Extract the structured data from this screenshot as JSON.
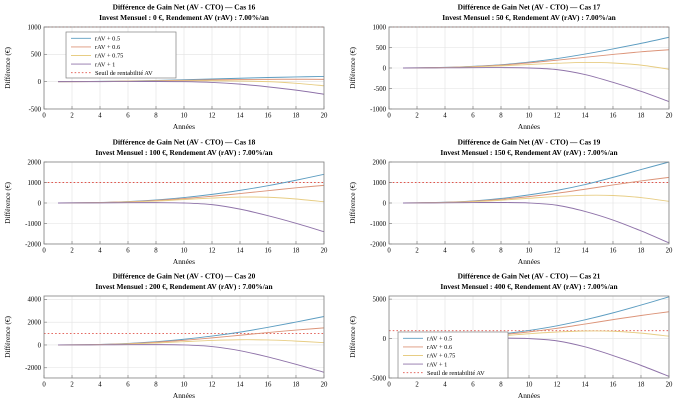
{
  "figure": {
    "xlabel": "Années",
    "ylabel": "Différence (€)",
    "xlim": [
      0,
      20
    ],
    "x_ticks": [
      0,
      2,
      4,
      6,
      8,
      10,
      12,
      14,
      16,
      18,
      20
    ],
    "x": [
      1,
      2,
      4,
      6,
      8,
      10,
      12,
      14,
      16,
      18,
      20
    ],
    "threshold_value": 1000,
    "legend_entries": [
      "rAV + 0.5",
      "rAV + 0.6",
      "rAV + 0.75",
      "rAV + 1",
      "Seuil de rentabilité AV"
    ],
    "colors": {
      "series": [
        "#5D9DC1",
        "#DC9479",
        "#E7CD84",
        "#8F73A9"
      ],
      "threshold": "#E0544B",
      "grid": "#E2E2E2",
      "axis": "#808080",
      "text": "#000000",
      "background": "#ffffff"
    }
  },
  "chart_data": [
    {
      "type": "line",
      "case": "Cas 16",
      "title": "Différence de Gain Net (AV - CTO) — Cas 16",
      "subtitle": "Invest Mensuel : 0 €, Rendement AV (rAV) : 7.00%/an",
      "ylim": [
        -500,
        1000
      ],
      "yticks": [
        -500,
        0,
        500,
        1000
      ],
      "legend": "top-left",
      "series": [
        {
          "name": "rAV + 0.5",
          "values": [
            0,
            2,
            6,
            12,
            22,
            35,
            48,
            62,
            76,
            86,
            95
          ]
        },
        {
          "name": "rAV + 0.6",
          "values": [
            0,
            1,
            4,
            9,
            16,
            25,
            32,
            38,
            42,
            44,
            42
          ]
        },
        {
          "name": "rAV + 0.75",
          "values": [
            0,
            1,
            3,
            7,
            11,
            15,
            16,
            12,
            0,
            -30,
            -75
          ]
        },
        {
          "name": "rAV + 1",
          "values": [
            0,
            0,
            1,
            2,
            3,
            0,
            -14,
            -45,
            -95,
            -155,
            -230
          ]
        }
      ]
    },
    {
      "type": "line",
      "case": "Cas 17",
      "title": "Différence de Gain Net (AV - CTO) — Cas 17",
      "subtitle": "Invest Mensuel : 50 €, Rendement AV (rAV) : 7.00%/an",
      "ylim": [
        -1000,
        1000
      ],
      "yticks": [
        -1000,
        -500,
        0,
        500,
        1000
      ],
      "legend": null,
      "series": [
        {
          "name": "rAV + 0.5",
          "values": [
            0,
            3,
            15,
            40,
            80,
            145,
            230,
            340,
            465,
            600,
            750
          ]
        },
        {
          "name": "rAV + 0.6",
          "values": [
            0,
            3,
            13,
            35,
            70,
            125,
            190,
            260,
            330,
            395,
            445
          ]
        },
        {
          "name": "rAV + 0.75",
          "values": [
            0,
            2,
            10,
            26,
            52,
            85,
            115,
            135,
            122,
            70,
            -30
          ]
        },
        {
          "name": "rAV + 1",
          "values": [
            0,
            1,
            4,
            8,
            10,
            0,
            -40,
            -160,
            -350,
            -570,
            -820
          ]
        }
      ]
    },
    {
      "type": "line",
      "case": "Cas 18",
      "title": "Différence de Gain Net (AV - CTO) — Cas 18",
      "subtitle": "Invest Mensuel : 100 €, Rendement AV (rAV) : 7.00%/an",
      "ylim": [
        -2000,
        2000
      ],
      "yticks": [
        -2000,
        -1000,
        0,
        1000,
        2000
      ],
      "legend": null,
      "series": [
        {
          "name": "rAV + 0.5",
          "values": [
            0,
            5,
            25,
            70,
            150,
            265,
            420,
            615,
            845,
            1110,
            1400
          ]
        },
        {
          "name": "rAV + 0.6",
          "values": [
            0,
            5,
            22,
            60,
            125,
            215,
            330,
            460,
            600,
            740,
            860
          ]
        },
        {
          "name": "rAV + 0.75",
          "values": [
            0,
            4,
            18,
            48,
            95,
            170,
            240,
            290,
            280,
            195,
            60
          ]
        },
        {
          "name": "rAV + 1",
          "values": [
            0,
            2,
            7,
            14,
            17,
            0,
            -80,
            -300,
            -620,
            -990,
            -1400
          ]
        }
      ]
    },
    {
      "type": "line",
      "case": "Cas 19",
      "title": "Différence de Gain Net (AV - CTO) — Cas 19",
      "subtitle": "Invest Mensuel : 150 €, Rendement AV (rAV) : 7.00%/an",
      "ylim": [
        -2000,
        2000
      ],
      "yticks": [
        -2000,
        -1000,
        0,
        1000,
        2000
      ],
      "legend": null,
      "series": [
        {
          "name": "rAV + 0.5",
          "values": [
            0,
            8,
            35,
            100,
            220,
            395,
            615,
            900,
            1250,
            1630,
            2000
          ]
        },
        {
          "name": "rAV + 0.6",
          "values": [
            0,
            7,
            30,
            85,
            180,
            310,
            475,
            670,
            880,
            1075,
            1250
          ]
        },
        {
          "name": "rAV + 0.75",
          "values": [
            0,
            5,
            25,
            65,
            135,
            230,
            320,
            375,
            365,
            265,
            80
          ]
        },
        {
          "name": "rAV + 1",
          "values": [
            0,
            3,
            10,
            20,
            25,
            0,
            -110,
            -410,
            -830,
            -1360,
            -1950
          ]
        }
      ]
    },
    {
      "type": "line",
      "case": "Cas 20",
      "title": "Différence de Gain Net (AV - CTO) — Cas 20",
      "subtitle": "Invest Mensuel : 200 €, Rendement AV (rAV) : 7.00%/an",
      "ylim": [
        -2900,
        4300
      ],
      "yticks": [
        -2000,
        0,
        2000,
        4000
      ],
      "legend": null,
      "series": [
        {
          "name": "rAV + 0.5",
          "values": [
            0,
            10,
            45,
            130,
            280,
            500,
            780,
            1130,
            1550,
            2010,
            2500
          ]
        },
        {
          "name": "rAV + 0.6",
          "values": [
            0,
            9,
            40,
            112,
            240,
            410,
            620,
            855,
            1090,
            1310,
            1500
          ]
        },
        {
          "name": "rAV + 0.75",
          "values": [
            0,
            7,
            32,
            85,
            170,
            290,
            400,
            460,
            440,
            340,
            200
          ]
        },
        {
          "name": "rAV + 1",
          "values": [
            0,
            4,
            13,
            26,
            30,
            0,
            -140,
            -500,
            -1050,
            -1700,
            -2400
          ]
        }
      ]
    },
    {
      "type": "line",
      "case": "Cas 21",
      "title": "Différence de Gain Net (AV - CTO) — Cas 21",
      "subtitle": "Invest Mensuel : 400 €, Rendement AV (rAV) : 7.00%/an",
      "ylim": [
        -5000,
        5400
      ],
      "yticks": [
        -5000,
        0,
        5000
      ],
      "legend": "bottom-left",
      "series": [
        {
          "name": "rAV + 0.5",
          "values": [
            0,
            20,
            90,
            260,
            570,
            1030,
            1620,
            2380,
            3260,
            4250,
            5300
          ]
        },
        {
          "name": "rAV + 0.6",
          "values": [
            0,
            18,
            80,
            230,
            490,
            850,
            1300,
            1840,
            2400,
            2930,
            3400
          ]
        },
        {
          "name": "rAV + 0.75",
          "values": [
            0,
            14,
            64,
            175,
            355,
            610,
            830,
            960,
            930,
            690,
            300
          ]
        },
        {
          "name": "rAV + 1",
          "values": [
            0,
            8,
            26,
            52,
            62,
            0,
            -290,
            -1050,
            -2150,
            -3400,
            -4800
          ]
        }
      ]
    }
  ]
}
